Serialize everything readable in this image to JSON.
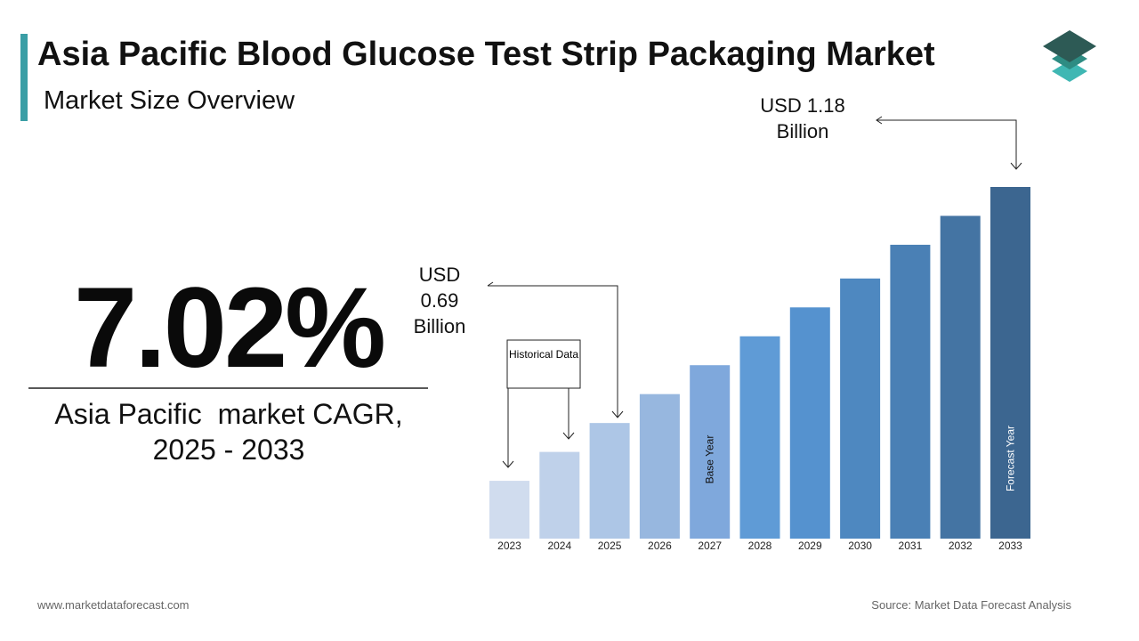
{
  "header": {
    "title": "Asia Pacific Blood Glucose Test Strip Packaging Market",
    "subtitle": "Market Size Overview"
  },
  "cagr": {
    "figure": "7.02%",
    "caption": "Asia Pacific  market CAGR, 2025 - 2033"
  },
  "chart_data": {
    "type": "bar",
    "categories": [
      "2023",
      "2024",
      "2025",
      "2026",
      "2027",
      "2028",
      "2029",
      "2030",
      "2031",
      "2032",
      "2033"
    ],
    "values": [
      0.57,
      0.63,
      0.69,
      0.75,
      0.81,
      0.87,
      0.93,
      0.99,
      1.06,
      1.12,
      1.18
    ],
    "value_labels": [
      null,
      null,
      "USD 0.69 Billion",
      null,
      null,
      null,
      null,
      null,
      null,
      null,
      "USD 1.18 Billion"
    ],
    "colors": [
      "#d0dcee",
      "#bfd1ea",
      "#adc6e6",
      "#97b7df",
      "#7fa8dc",
      "#5f9bd6",
      "#5592cf",
      "#4e88c0",
      "#4a80b5",
      "#4474a3",
      "#3c6690"
    ],
    "ylim": [
      0.45,
      1.18
    ],
    "annotations": {
      "historical": "Historical Data",
      "base_year": "Base Year",
      "forecast_year": "Forecast Year"
    }
  },
  "footer": {
    "website": "www.marketdataforecast.com",
    "source": "Source: Market Data Forecast Analysis"
  }
}
